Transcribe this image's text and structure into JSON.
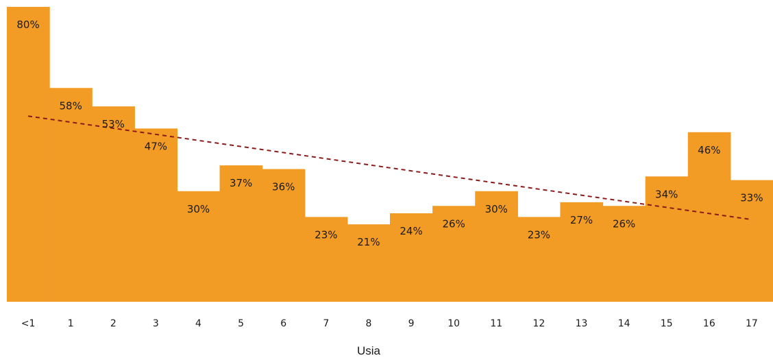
{
  "chart_data": {
    "type": "bar",
    "categories": [
      "<1",
      "1",
      "2",
      "3",
      "4",
      "5",
      "6",
      "7",
      "8",
      "9",
      "10",
      "11",
      "12",
      "13",
      "14",
      "15",
      "16",
      "17"
    ],
    "values": [
      80,
      58,
      53,
      47,
      30,
      37,
      36,
      23,
      21,
      24,
      26,
      30,
      23,
      27,
      26,
      34,
      46,
      33
    ],
    "data_labels": [
      "80%",
      "58%",
      "53%",
      "47%",
      "30%",
      "37%",
      "36%",
      "23%",
      "21%",
      "24%",
      "26%",
      "30%",
      "23%",
      "27%",
      "26%",
      "34%",
      "46%",
      "33%"
    ],
    "title": "",
    "xlabel": "Usia",
    "ylabel": "",
    "ylim": [
      0,
      80
    ],
    "grid": false,
    "legend": "none",
    "trendline": {
      "type": "linear",
      "style": "dashed",
      "color": "#8b1a1a"
    },
    "colors": {
      "bar": "#f29b25",
      "label": "#1a1a1a"
    }
  }
}
